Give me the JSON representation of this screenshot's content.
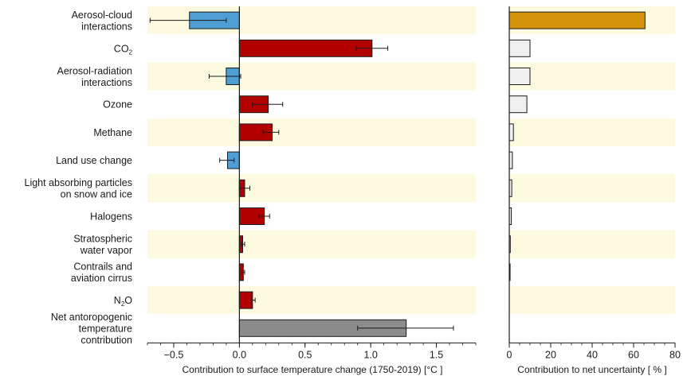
{
  "chart_data": [
    {
      "type": "bar",
      "orientation": "horizontal",
      "categories": [
        "Aerosol-cloud interactions",
        "CO2",
        "Aerosol-radiation interactions",
        "Ozone",
        "Methane",
        "Land use change",
        "Light absorbing particles on snow and ice",
        "Halogens",
        "Stratospheric water vapor",
        "Contrails and aviation cirrus",
        "N2O",
        "Net antoropogenic temperature contribution"
      ],
      "category_label_lines": [
        [
          "Aerosol-cloud",
          "interactions"
        ],
        [
          "CO2"
        ],
        [
          "Aerosol-radiation",
          "interactions"
        ],
        [
          "Ozone"
        ],
        [
          "Methane"
        ],
        [
          "Land use change"
        ],
        [
          "Light absorbing particles",
          "on snow and ice"
        ],
        [
          "Halogens"
        ],
        [
          "Stratospheric",
          "water vapor"
        ],
        [
          "Contrails and",
          "aviation cirrus"
        ],
        [
          "N2O"
        ],
        [
          "Net antoropogenic",
          "temperature",
          "contribution"
        ]
      ],
      "values": [
        -0.38,
        1.01,
        -0.1,
        0.22,
        0.25,
        -0.09,
        0.04,
        0.19,
        0.025,
        0.03,
        0.1,
        1.27
      ],
      "error_low": [
        -0.68,
        0.89,
        -0.23,
        0.1,
        0.18,
        -0.15,
        0.0,
        0.15,
        0.015,
        0.02,
        0.09,
        0.9
      ],
      "error_high": [
        -0.1,
        1.13,
        0.01,
        0.33,
        0.3,
        -0.04,
        0.08,
        0.23,
        0.04,
        0.04,
        0.12,
        1.63
      ],
      "xlim": [
        -0.7,
        1.8
      ],
      "xticks": [
        -0.5,
        0.0,
        0.5,
        1.0,
        1.5
      ],
      "xtick_labels": [
        "−0.5",
        "0.0",
        "0.5",
        "1.0",
        "1.5"
      ],
      "xlabel": "Contribution to surface temperature change (1750-2019) [°C ]",
      "title": "",
      "colors": {
        "positive": "#b20000",
        "negative": "#4f9fd4",
        "net": "#8c8c8c",
        "band": "#fcfadf"
      }
    },
    {
      "type": "bar",
      "orientation": "horizontal",
      "categories": [
        "Aerosol-cloud interactions",
        "CO2",
        "Aerosol-radiation interactions",
        "Ozone",
        "Methane",
        "Land use change",
        "Light absorbing particles on snow and ice",
        "Halogens",
        "Stratospheric water vapor",
        "Contrails and aviation cirrus",
        "N2O",
        "Net antoropogenic temperature contribution"
      ],
      "values": [
        65.5,
        10,
        10,
        8.5,
        2,
        1.5,
        1.2,
        1,
        0.5,
        0.4,
        0,
        0
      ],
      "xlim": [
        0,
        80
      ],
      "xticks": [
        0,
        20,
        40,
        60,
        80
      ],
      "xtick_labels": [
        "0",
        "20",
        "40",
        "60",
        "80"
      ],
      "xlabel": "Contribution to net uncertainty  [ % ]",
      "title": "",
      "colors": {
        "highlight": "#d4920d",
        "default": "#f0f0f0"
      }
    }
  ]
}
